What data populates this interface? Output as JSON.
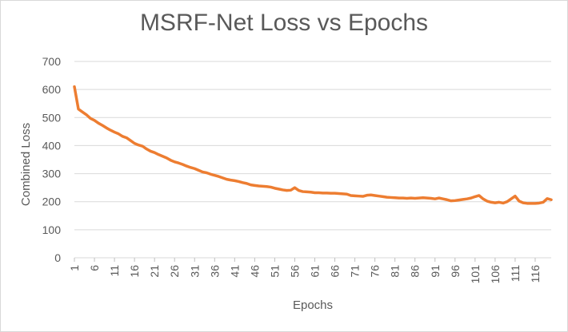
{
  "chart_data": {
    "type": "line",
    "title": "MSRF-Net Loss vs Epochs",
    "xlabel": "Epochs",
    "ylabel": "Combined Loss",
    "ylim": [
      0,
      700
    ],
    "yticks": [
      0,
      100,
      200,
      300,
      400,
      500,
      600,
      700
    ],
    "xticks": [
      1,
      6,
      11,
      16,
      21,
      26,
      31,
      36,
      41,
      46,
      51,
      56,
      61,
      66,
      71,
      76,
      81,
      86,
      91,
      96,
      101,
      106,
      111,
      116
    ],
    "xlim": [
      1,
      120
    ],
    "grid": true,
    "color": "#ED7D31",
    "series": [
      {
        "x": [
          1,
          2,
          3,
          4,
          5,
          6,
          7,
          8,
          9,
          10,
          11,
          12,
          13,
          14,
          15,
          16,
          17,
          18,
          19,
          20,
          21,
          22,
          23,
          24,
          25,
          26,
          27,
          28,
          29,
          30,
          31,
          32,
          33,
          34,
          35,
          36,
          37,
          38,
          39,
          40,
          41,
          42,
          43,
          44,
          45,
          46,
          47,
          48,
          49,
          50,
          51,
          52,
          53,
          54,
          55,
          56,
          57,
          58,
          59,
          60,
          61,
          62,
          63,
          64,
          65,
          66,
          67,
          68,
          69,
          70,
          71,
          72,
          73,
          74,
          75,
          76,
          77,
          78,
          79,
          80,
          81,
          82,
          83,
          84,
          85,
          86,
          87,
          88,
          89,
          90,
          91,
          92,
          93,
          94,
          95,
          96,
          97,
          98,
          99,
          100,
          101,
          102,
          103,
          104,
          105,
          106,
          107,
          108,
          109,
          110,
          111,
          112,
          113,
          114,
          115,
          116,
          117,
          118,
          119,
          120
        ],
        "values": [
          610,
          530,
          520,
          510,
          497,
          490,
          480,
          472,
          463,
          455,
          448,
          442,
          433,
          428,
          418,
          408,
          402,
          398,
          388,
          380,
          375,
          368,
          362,
          356,
          348,
          342,
          338,
          333,
          327,
          322,
          318,
          312,
          306,
          303,
          298,
          294,
          290,
          285,
          280,
          277,
          275,
          272,
          268,
          265,
          260,
          258,
          256,
          255,
          254,
          252,
          248,
          245,
          242,
          240,
          241,
          250,
          240,
          236,
          235,
          234,
          232,
          232,
          231,
          231,
          230,
          230,
          229,
          228,
          227,
          222,
          221,
          220,
          219,
          223,
          224,
          222,
          220,
          218,
          216,
          215,
          214,
          213,
          213,
          212,
          213,
          212,
          213,
          214,
          213,
          212,
          210,
          213,
          210,
          207,
          203,
          204,
          206,
          208,
          210,
          213,
          218,
          222,
          210,
          202,
          198,
          196,
          198,
          195,
          200,
          210,
          220,
          202,
          196,
          194,
          194,
          194,
          195,
          198,
          211,
          207
        ]
      }
    ]
  }
}
